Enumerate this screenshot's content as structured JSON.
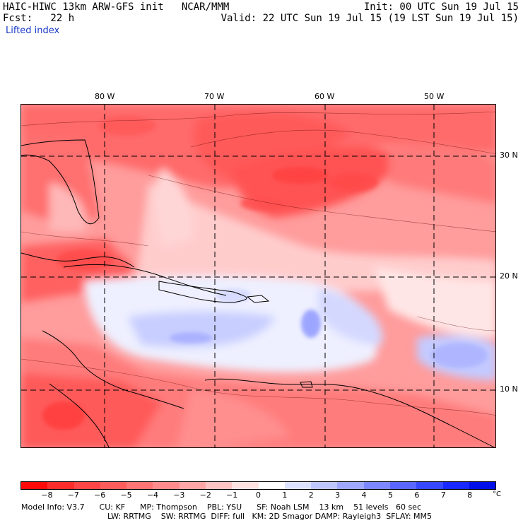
{
  "header": {
    "title": "HAIC-HIWC 13km ARW-GFS init   NCAR/MMM",
    "fcst": "Fcst:   22 h",
    "field": "Lifted index",
    "init": "Init: 00 UTC Sun 19 Jul 15",
    "valid": "Valid: 22 UTC Sun 19 Jul 15 (19 LST Sun 19 Jul 15)"
  },
  "map": {
    "longitude_labels": [
      "80 W",
      "70 W",
      "60 W",
      "50 W"
    ],
    "latitude_labels": [
      "30 N",
      "20 N",
      "10 N"
    ],
    "gridlines": "dashed"
  },
  "colorbar": {
    "tick_labels": [
      "−8",
      "−7",
      "−6",
      "−5",
      "−4",
      "−3",
      "−2",
      "−1",
      "0",
      "1",
      "2",
      "3",
      "4",
      "5",
      "6",
      "7",
      "8"
    ],
    "unit": "°C",
    "colors": [
      "#ff0a0a",
      "#ff2c2c",
      "#ff4646",
      "#ff5c5c",
      "#ff7474",
      "#ff8c8c",
      "#ffa6a6",
      "#ffc4c4",
      "#ffe2e2",
      "#ffffff",
      "#dde2ff",
      "#bfc6ff",
      "#9ea8ff",
      "#7c88ff",
      "#5a68ff",
      "#3848ff",
      "#1828ff",
      "#0010e8"
    ]
  },
  "footer": {
    "line1": "Model Info: V3.7      CU: KF      MP: Thompson    PBL: YSU      SF: Noah LSM    13 km    51 levels   60 sec",
    "line2": "LW: RRTMG    SW: RRTMG  DIFF: full   KM: 2D Smagor DAMP: Rayleigh3  SFLAY: MM5"
  }
}
